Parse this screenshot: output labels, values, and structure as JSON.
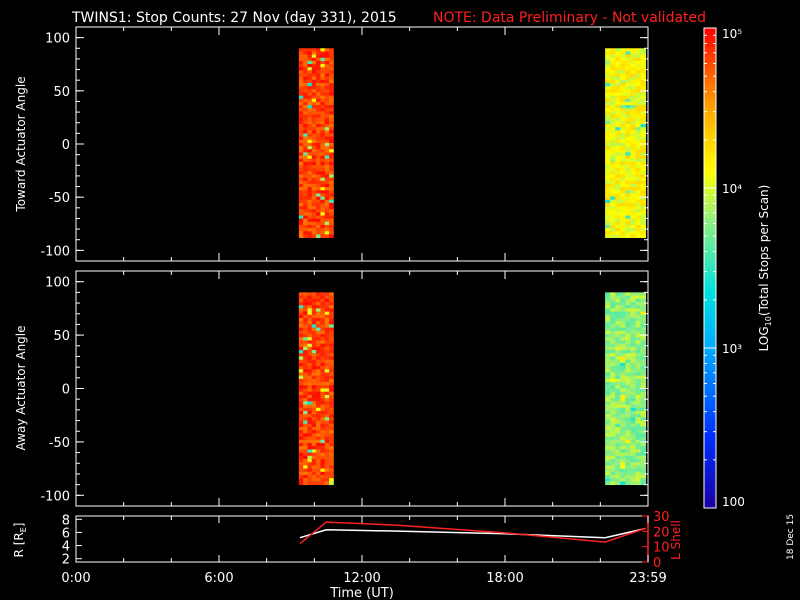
{
  "title": {
    "main": "TWINS1: Stop Counts: 27 Nov (day 331), 2015",
    "note": "NOTE: Data Preliminary - Not validated",
    "note_color": "#ff2020"
  },
  "side_stamp": "18 Dec 15",
  "chart_data": [
    {
      "id": "toward",
      "type": "heatmap",
      "ylabel": "Toward Actuator Angle",
      "xlim_hours": [
        0,
        24
      ],
      "ylim": [
        -110,
        110
      ],
      "yticks": [
        100,
        50,
        0,
        -50,
        -100
      ],
      "ytick_labels": [
        "100",
        "50",
        "0",
        "-50",
        "-100"
      ],
      "value_units": "log10 total stops per scan",
      "blocks": [
        {
          "x_start": 9.35,
          "x_end": 10.8,
          "y_start": -88,
          "y_end": 90,
          "dominant_log10": 4.8
        },
        {
          "x_start": 22.2,
          "x_end": 23.9,
          "y_start": -88,
          "y_end": 90,
          "dominant_log10": 4.1
        }
      ]
    },
    {
      "id": "away",
      "type": "heatmap",
      "ylabel": "Away Actuator Angle",
      "xlim_hours": [
        0,
        24
      ],
      "ylim": [
        -110,
        110
      ],
      "yticks": [
        100,
        50,
        0,
        -50,
        -100
      ],
      "ytick_labels": [
        "100",
        "50",
        "0",
        "-50",
        "-100"
      ],
      "value_units": "log10 total stops per scan",
      "blocks": [
        {
          "x_start": 9.35,
          "x_end": 10.8,
          "y_start": -90,
          "y_end": 90,
          "dominant_log10": 4.8
        },
        {
          "x_start": 22.2,
          "x_end": 23.9,
          "y_start": -90,
          "y_end": 90,
          "dominant_log10": 3.8
        }
      ]
    },
    {
      "id": "orbit",
      "type": "line",
      "xlim_hours": [
        0,
        24
      ],
      "xticks_hours": [
        0,
        6,
        12,
        18,
        24
      ],
      "xtick_labels": [
        "0:00",
        "6:00",
        "12:00",
        "18:00",
        "23:59"
      ],
      "xlabel": "Time (UT)",
      "left_axis": {
        "label": "R [RE]",
        "ylim": [
          1.5,
          8.5
        ],
        "yticks": [
          2,
          4,
          6,
          8
        ],
        "ytick_labels": [
          "2",
          "4",
          "6",
          "8"
        ],
        "color": "#ffffff"
      },
      "right_axis": {
        "label": "L Shell",
        "ylim": [
          0,
          30
        ],
        "yticks": [
          0,
          10,
          20,
          30
        ],
        "ytick_labels": [
          "0",
          "10",
          "20",
          "30"
        ],
        "color": "#ff2020"
      },
      "series": [
        {
          "axis": "left",
          "color": "#ffffff",
          "x": [
            9.4,
            10.5,
            13.5,
            18.0,
            22.2,
            23.9
          ],
          "y": [
            5.2,
            6.4,
            6.2,
            5.8,
            5.2,
            6.6
          ]
        },
        {
          "axis": "right",
          "color": "#ff2020",
          "x": [
            9.4,
            10.5,
            13.5,
            18.0,
            22.2,
            23.9
          ],
          "y": [
            12,
            26,
            24,
            19,
            13,
            22
          ]
        }
      ]
    }
  ],
  "colorbar": {
    "label": "LOG10(Total Stops per Scan)",
    "range_log10": [
      2,
      5
    ],
    "ticks_log10": [
      2,
      3,
      4,
      5
    ],
    "tick_labels": [
      "100",
      "10³",
      "10⁴",
      "10⁵"
    ]
  }
}
